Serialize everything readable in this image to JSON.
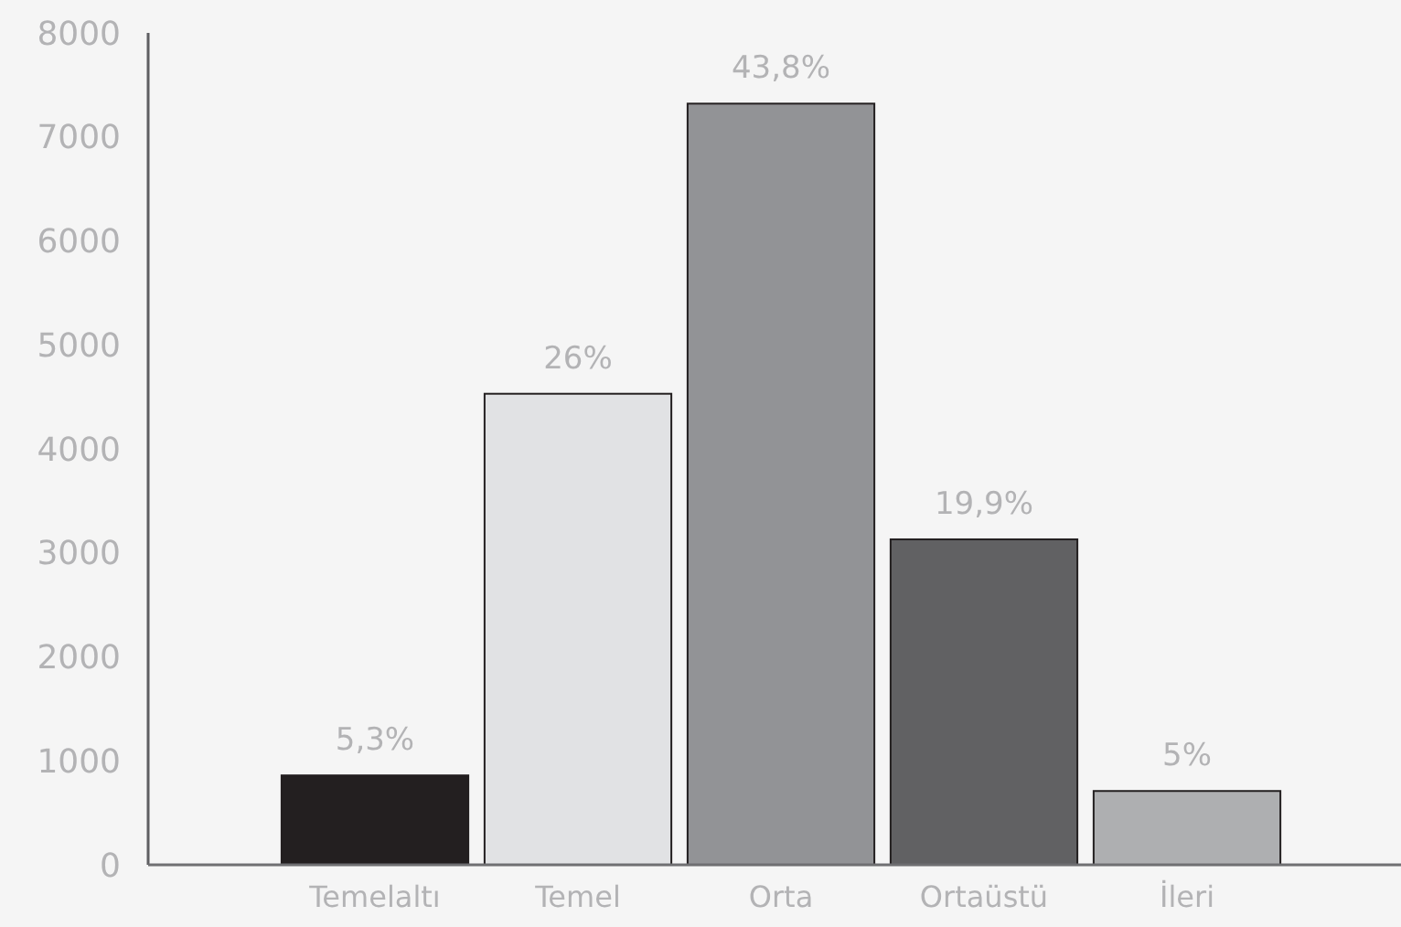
{
  "chart_data": {
    "type": "bar",
    "categories": [
      "Temelaltı",
      "Temel",
      "Orta",
      "Ortaüstü",
      "İleri"
    ],
    "values": [
      860,
      4530,
      7320,
      3130,
      710
    ],
    "colors": [
      "#231f20",
      "#e1e2e4",
      "#929396",
      "#616163",
      "#aeafb1"
    ],
    "annotations": [
      {
        "text": "5,3%",
        "x": "Temelaltı",
        "y": 860
      },
      {
        "text": "26%",
        "x": "Temel",
        "y": 4530
      },
      {
        "text": "43,8%",
        "x": "Orta",
        "y": 7320
      },
      {
        "text": "19,9%",
        "x": "Ortaüstü",
        "y": 3130
      },
      {
        "text": "5%",
        "x": "İleri",
        "y": 710
      }
    ],
    "ylim": [
      0,
      8000
    ],
    "yticks": [
      0,
      1000,
      2000,
      3000,
      4000,
      5000,
      6000,
      7000,
      8000
    ],
    "grid": false
  }
}
